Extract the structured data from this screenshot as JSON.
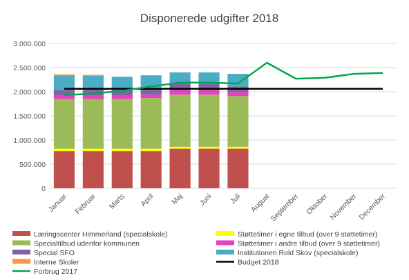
{
  "chart_data": {
    "type": "bar",
    "stacked": true,
    "title": "Disponerede udgifter 2018",
    "xlabel": "",
    "ylabel": "",
    "ylim": [
      0,
      3000000
    ],
    "y_ticks": [
      0,
      500000,
      1000000,
      1500000,
      2000000,
      2500000,
      3000000
    ],
    "y_tick_labels": [
      "0",
      "500.000",
      "1.000.000",
      "1.500.000",
      "2.000.000",
      "2.500.000",
      "3.000.000"
    ],
    "grid": true,
    "legend_position": "bottom",
    "categories": [
      "Januar",
      "Februar",
      "Marts",
      "April",
      "Maj",
      "Juni",
      "Juli",
      "August",
      "September",
      "Oktober",
      "November",
      "December"
    ],
    "series": [
      {
        "name": "Læringscenter Himmerland (specialskole)",
        "color": "#c0504d",
        "values": [
          770000,
          770000,
          770000,
          770000,
          820000,
          820000,
          820000,
          null,
          null,
          null,
          null,
          null
        ]
      },
      {
        "name": "Støttetimer i egne tilbud (over 9 støttetimer)",
        "color": "#ffff00",
        "values": [
          50000,
          50000,
          50000,
          50000,
          40000,
          40000,
          40000,
          null,
          null,
          null,
          null,
          null
        ]
      },
      {
        "name": "Specialtilbud udenfor kommunen",
        "color": "#9bbb59",
        "values": [
          1030000,
          1030000,
          1030000,
          1050000,
          1080000,
          1080000,
          1050000,
          null,
          null,
          null,
          null,
          null
        ]
      },
      {
        "name": "Støttetimer i andre tilbud (over 9 støttetimer)",
        "color": "#e83fc3",
        "values": [
          70000,
          70000,
          70000,
          70000,
          90000,
          90000,
          80000,
          null,
          null,
          null,
          null,
          null
        ]
      },
      {
        "name": "Special SFO",
        "color": "#8064a2",
        "values": [
          120000,
          120000,
          120000,
          130000,
          140000,
          140000,
          120000,
          null,
          null,
          null,
          null,
          null
        ]
      },
      {
        "name": "Institutionen Rold Skov (specialskole)",
        "color": "#4bacc6",
        "values": [
          300000,
          290000,
          270000,
          270000,
          230000,
          230000,
          260000,
          null,
          null,
          null,
          null,
          null
        ]
      },
      {
        "name": "Interne Skoler",
        "color": "#f79646",
        "values": [
          20000,
          20000,
          0,
          0,
          0,
          0,
          0,
          null,
          null,
          null,
          null,
          null
        ]
      }
    ],
    "lines": [
      {
        "name": "Budget 2018",
        "color": "#000000",
        "values": [
          2060000,
          2060000,
          2060000,
          2060000,
          2060000,
          2060000,
          2060000,
          2060000,
          2060000,
          2060000,
          2060000,
          2060000
        ]
      },
      {
        "name": "Forbrug 2017",
        "color": "#00a651",
        "values": [
          1930000,
          1960000,
          2020000,
          2110000,
          2190000,
          2190000,
          2170000,
          2600000,
          2270000,
          2290000,
          2370000,
          2390000
        ]
      }
    ]
  }
}
